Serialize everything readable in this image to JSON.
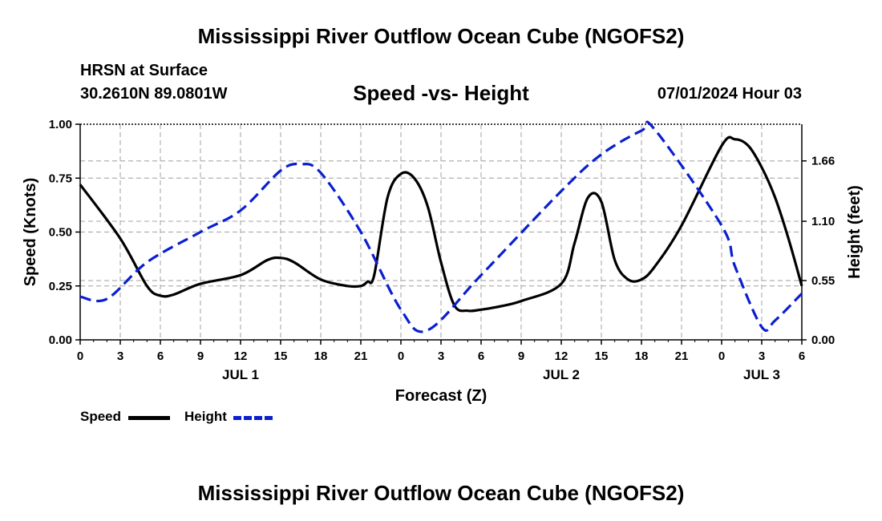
{
  "page": {
    "title": "Mississippi River Outflow Ocean Cube (NGOFS2)",
    "footer_title": "Mississippi River Outflow Ocean Cube (NGOFS2)",
    "station": "HRSN at Surface",
    "coords": "30.2610N  89.0801W",
    "datetime": "07/01/2024 Hour 03"
  },
  "legend": {
    "speed_label": "Speed",
    "height_label": "Height"
  },
  "colors": {
    "speed": "#000000",
    "height": "#0a1fd0",
    "grid": "#b0b0b0"
  },
  "chart_data": {
    "type": "line",
    "title": "Speed -vs- Height",
    "xlabel": "Forecast (Z)",
    "ylabel": "Speed (Knots)",
    "y2label": "Height (feet)",
    "xlim": [
      0,
      54
    ],
    "ylim": [
      0,
      1.0
    ],
    "y2lim": [
      0,
      2.0
    ],
    "xticks": [
      0,
      3,
      6,
      9,
      12,
      15,
      18,
      21,
      24,
      27,
      30,
      33,
      36,
      39,
      42,
      45,
      48,
      51,
      54
    ],
    "xtick_labels": [
      "0",
      "3",
      "6",
      "9",
      "12",
      "15",
      "18",
      "21",
      "0",
      "3",
      "6",
      "9",
      "12",
      "15",
      "18",
      "21",
      "0",
      "3",
      "6"
    ],
    "day_labels": [
      {
        "x": 12,
        "label": "JUL 1"
      },
      {
        "x": 36,
        "label": "JUL 2"
      },
      {
        "x": 51,
        "label": "JUL 3"
      }
    ],
    "yticks": [
      0,
      0.25,
      0.5,
      0.75,
      1.0
    ],
    "ytick_labels": [
      "0.00",
      "0.25",
      "0.50",
      "0.75",
      "1.00"
    ],
    "y2ticks": [
      0,
      0.55,
      1.1,
      1.66
    ],
    "y2tick_labels": [
      "0.00",
      "0.55",
      "1.10",
      "1.66"
    ],
    "series": [
      {
        "name": "Speed",
        "axis": "left",
        "style": "solid",
        "x": [
          0,
          3,
          5,
          6,
          7,
          9,
          12,
          14,
          15,
          16,
          18,
          20,
          21,
          21.5,
          22,
          23,
          24,
          25,
          26,
          27,
          28,
          29,
          30,
          31,
          33,
          36,
          37,
          38,
          39,
          40,
          41,
          42,
          43,
          45,
          48,
          49,
          50,
          51,
          52,
          53,
          54
        ],
        "y": [
          0.72,
          0.47,
          0.25,
          0.205,
          0.21,
          0.26,
          0.3,
          0.37,
          0.38,
          0.36,
          0.28,
          0.25,
          0.25,
          0.27,
          0.3,
          0.66,
          0.77,
          0.75,
          0.62,
          0.36,
          0.16,
          0.135,
          0.14,
          0.15,
          0.18,
          0.26,
          0.45,
          0.66,
          0.64,
          0.37,
          0.28,
          0.28,
          0.34,
          0.53,
          0.9,
          0.93,
          0.9,
          0.8,
          0.66,
          0.47,
          0.25
        ]
      },
      {
        "name": "Height",
        "axis": "right",
        "style": "dashed",
        "x": [
          0,
          2,
          5,
          9,
          12,
          15,
          16.5,
          18,
          21,
          24,
          26,
          30,
          36,
          39,
          42,
          43,
          48,
          49,
          51,
          52,
          54
        ],
        "y": [
          0.4,
          0.38,
          0.72,
          1.0,
          1.2,
          1.57,
          1.63,
          1.55,
          1.0,
          0.28,
          0.09,
          0.6,
          1.38,
          1.72,
          1.94,
          1.95,
          1.06,
          0.68,
          0.12,
          0.18,
          0.43
        ]
      }
    ]
  }
}
